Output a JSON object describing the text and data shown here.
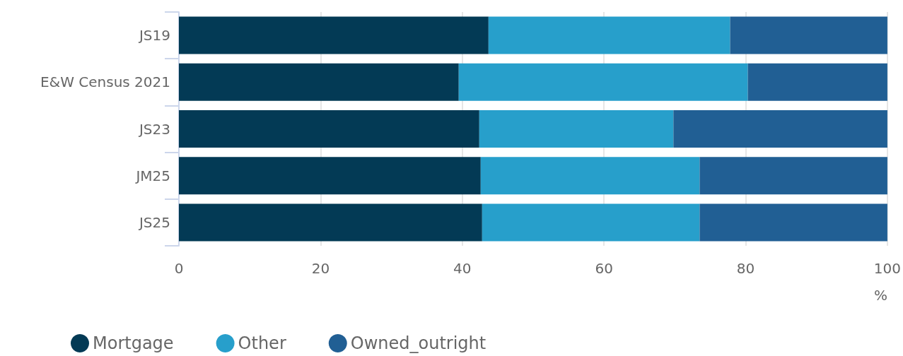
{
  "chart_data": {
    "type": "bar",
    "orientation": "horizontal",
    "stacked": true,
    "xlabel": "%",
    "categories": [
      "JS19",
      "E&W Census 2021",
      "JS23",
      "JM25",
      "JS25"
    ],
    "series": [
      {
        "name": "Mortgage",
        "color": "#033a55",
        "values": [
          43.7,
          39.5,
          42.4,
          42.6,
          42.8
        ]
      },
      {
        "name": "Other",
        "color": "#279fcb",
        "values": [
          34.1,
          40.8,
          27.4,
          30.9,
          30.7
        ]
      },
      {
        "name": "Owned_outright",
        "color": "#215f94",
        "values": [
          22.2,
          19.7,
          30.2,
          26.5,
          26.5
        ]
      }
    ],
    "xlim": [
      0,
      100
    ],
    "xticks": [
      0,
      20,
      40,
      60,
      80,
      100
    ],
    "grid": "x",
    "legend": "bottom left"
  }
}
